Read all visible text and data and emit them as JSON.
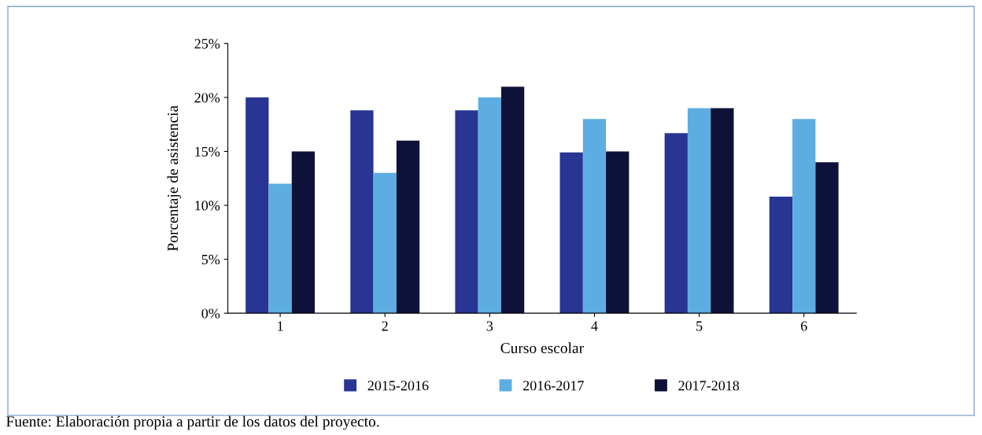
{
  "chart_data": {
    "type": "bar",
    "xlabel": "Curso escolar",
    "ylabel": "Porcentaje de asistencia",
    "categories": [
      "1",
      "2",
      "3",
      "4",
      "5",
      "6"
    ],
    "series": [
      {
        "name": "2015-2016",
        "color": "#283593",
        "values": [
          20,
          18.8,
          18.8,
          14.9,
          16.7,
          10.8
        ]
      },
      {
        "name": "2016-2017",
        "color": "#5dade2",
        "values": [
          12,
          13,
          20,
          18,
          19,
          18
        ]
      },
      {
        "name": "2017-2018",
        "color": "#0f1238",
        "values": [
          15,
          16,
          21,
          15,
          19,
          14
        ]
      }
    ],
    "ylim": [
      0,
      25
    ],
    "yticks": [
      {
        "value": 0,
        "label": "0%"
      },
      {
        "value": 5,
        "label": "5%"
      },
      {
        "value": 10,
        "label": "10%"
      },
      {
        "value": 15,
        "label": "15%"
      },
      {
        "value": 20,
        "label": "20%"
      },
      {
        "value": 25,
        "label": "25%"
      }
    ],
    "grid": false,
    "legend": "bottom",
    "annotations": [
      "Fuente: Elaboración propia a partir de los datos del proyecto."
    ]
  }
}
